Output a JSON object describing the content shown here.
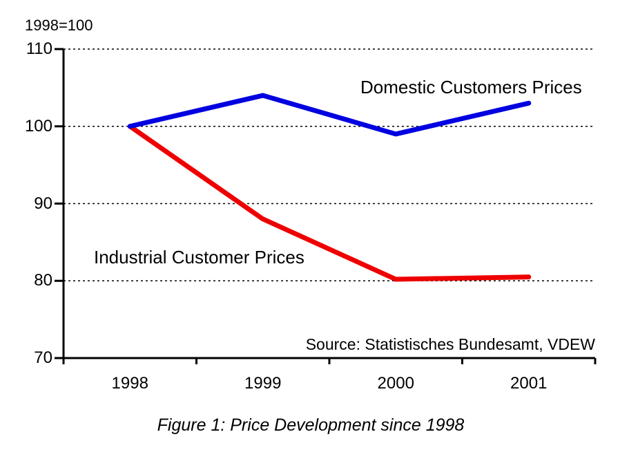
{
  "chart_data": {
    "type": "line",
    "title": "",
    "axis_note": "1998=100",
    "categories": [
      "1998",
      "1999",
      "2000",
      "2001"
    ],
    "series": [
      {
        "name": "Domestic Customers Prices",
        "color": "#0000e0",
        "values": [
          100,
          104,
          99,
          103
        ]
      },
      {
        "name": "Industrial Customer Prices",
        "color": "#ee0000",
        "values": [
          100,
          88,
          80.2,
          80.5
        ]
      }
    ],
    "ylim": [
      70,
      110
    ],
    "yticks": [
      70,
      80,
      90,
      100,
      110
    ],
    "xlabel": "",
    "ylabel": "",
    "grid": "horizontal-dotted",
    "legend_position": "inline-labels",
    "source": "Source: Statistisches Bundesamt, VDEW"
  },
  "caption": "Figure 1: Price Development since 1998",
  "colors": {
    "axis": "#000000",
    "grid": "#000000",
    "background": "#ffffff",
    "text": "#000000"
  }
}
